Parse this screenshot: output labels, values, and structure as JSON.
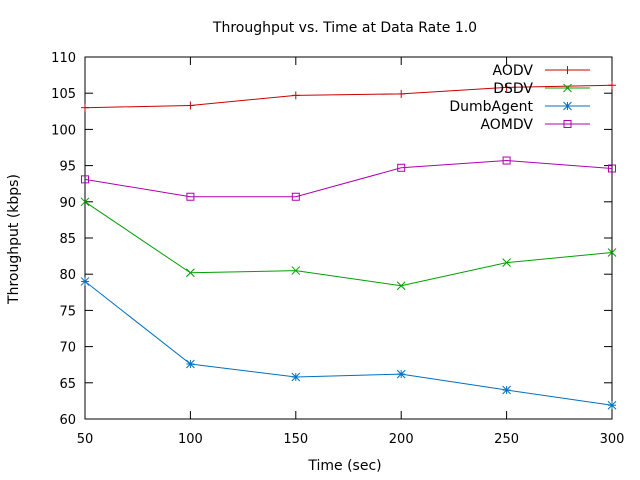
{
  "chart_data": {
    "type": "line",
    "title": "Throughput vs. Time at Data Rate 1.0",
    "xlabel": "Time (sec)",
    "ylabel": "Throughput (kbps)",
    "xlim": [
      50,
      300
    ],
    "ylim": [
      60,
      110
    ],
    "x_ticks": [
      50,
      100,
      150,
      200,
      250,
      300
    ],
    "y_ticks": [
      60,
      65,
      70,
      75,
      80,
      85,
      90,
      95,
      100,
      105,
      110
    ],
    "grid": false,
    "legend": "top-right",
    "x": [
      50,
      100,
      150,
      200,
      250,
      300
    ],
    "series": [
      {
        "name": "AODV",
        "values": [
          103.0,
          103.3,
          104.7,
          104.9,
          105.8,
          106.1
        ],
        "color": "#cc0000",
        "marker": "plus"
      },
      {
        "name": "DSDV",
        "values": [
          90.0,
          80.2,
          80.5,
          78.4,
          81.6,
          83.0
        ],
        "color": "#00a000",
        "marker": "cross"
      },
      {
        "name": "DumbAgent",
        "values": [
          79.0,
          67.6,
          65.8,
          66.2,
          64.0,
          61.9
        ],
        "color": "#0070c0",
        "marker": "star"
      },
      {
        "name": "AOMDV",
        "values": [
          93.1,
          90.7,
          90.7,
          94.7,
          95.7,
          94.6
        ],
        "color": "#b000b0",
        "marker": "square"
      }
    ]
  }
}
